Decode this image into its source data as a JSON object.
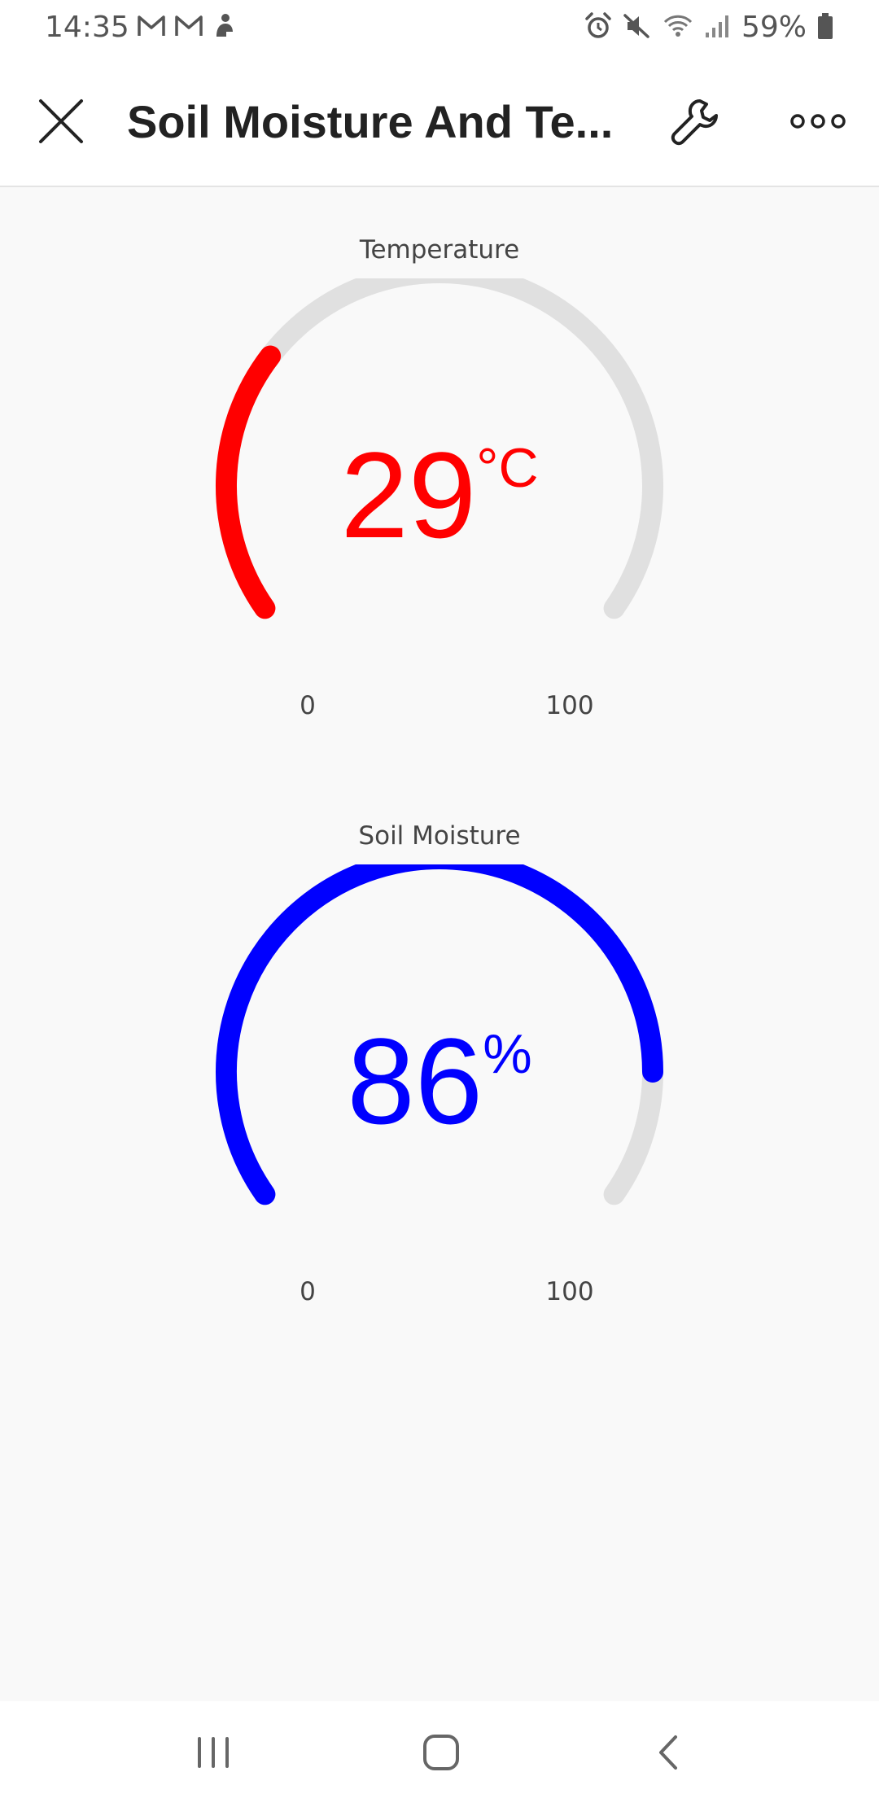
{
  "status_bar": {
    "time": "14:35",
    "battery": "59%",
    "left_icons": [
      "gmail-icon",
      "gmail-icon",
      "app-notification-icon"
    ],
    "right_icons": [
      "alarm-icon",
      "mute-icon",
      "wifi-icon",
      "signal-icon",
      "battery-icon"
    ]
  },
  "app_bar": {
    "title": "Soil Moisture And Te...",
    "icons": [
      "close-icon",
      "wrench-icon",
      "more-icon"
    ]
  },
  "gauges": [
    {
      "label": "Temperature",
      "value": "29",
      "unit": "°C",
      "min": "0",
      "max": "100",
      "fraction": 0.29,
      "color": "#ff0000"
    },
    {
      "label": "Soil Moisture",
      "value": "86",
      "unit": "%",
      "min": "0",
      "max": "100",
      "fraction": 0.86,
      "color": "#0000ff"
    }
  ],
  "colors": {
    "track": "#e0e0e0",
    "text": "#444444",
    "background": "#f9f9f9"
  },
  "nav_bar": {
    "icons": [
      "recents-icon",
      "home-icon",
      "back-icon"
    ]
  }
}
